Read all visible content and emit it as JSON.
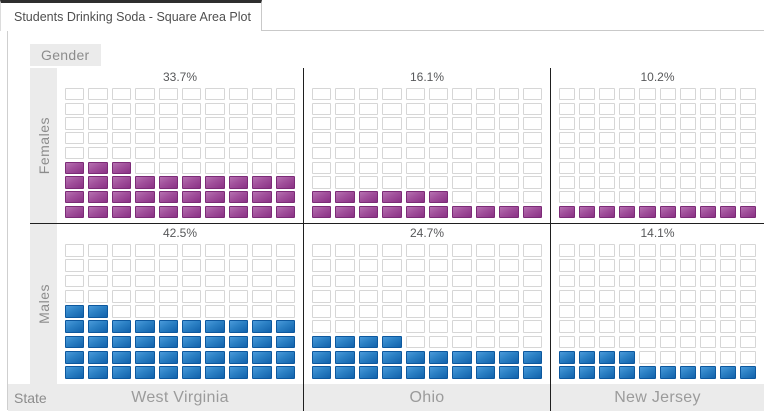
{
  "tab": {
    "title": "Students Drinking Soda - Square Area Plot"
  },
  "facets": {
    "row_header": "Gender",
    "col_header": "State",
    "row_labels": [
      "Females",
      "Males"
    ],
    "col_labels": [
      "West Virginia",
      "Ohio",
      "New Jersey"
    ]
  },
  "panels": [
    {
      "row": "Females",
      "col": "West Virginia",
      "percent_label": "33.7%",
      "filled_squares": 33
    },
    {
      "row": "Females",
      "col": "Ohio",
      "percent_label": "16.1%",
      "filled_squares": 16
    },
    {
      "row": "Females",
      "col": "New Jersey",
      "percent_label": "10.2%",
      "filled_squares": 10
    },
    {
      "row": "Males",
      "col": "West Virginia",
      "percent_label": "42.5%",
      "filled_squares": 42
    },
    {
      "row": "Males",
      "col": "Ohio",
      "percent_label": "24.7%",
      "filled_squares": 24
    },
    {
      "row": "Males",
      "col": "New Jersey",
      "percent_label": "14.1%",
      "filled_squares": 14
    }
  ],
  "chart_data": {
    "type": "waffle",
    "title": "Students Drinking Soda - Square Area Plot",
    "row_facet": "Gender",
    "col_facet": "State",
    "rows": [
      "Females",
      "Males"
    ],
    "columns": [
      "West Virginia",
      "Ohio",
      "New Jersey"
    ],
    "series": [
      {
        "name": "Females",
        "values_percent": [
          33.7,
          16.1,
          10.2
        ]
      },
      {
        "name": "Males",
        "values_percent": [
          42.5,
          24.7,
          14.1
        ]
      }
    ],
    "value_labels": [
      "33.7%",
      "16.1%",
      "10.2%",
      "42.5%",
      "24.7%",
      "14.1%"
    ],
    "grid": {
      "columns": 10,
      "rows": 9,
      "square_unit_percent": 1,
      "fill_origin": "bottom-left"
    },
    "filled_squares": {
      "Females": [
        33,
        16,
        10
      ],
      "Males": [
        42,
        24,
        14
      ]
    },
    "colors": {
      "females_fill": "#9c4496",
      "females_border": "#7c2b77",
      "males_fill": "#1b6fb5",
      "males_border": "#0d589e",
      "empty_fill": "#ffffff",
      "empty_border": "#d6d6d6",
      "divider": "#1f1f1f",
      "band_background": "#ebebeb",
      "label_gray": "#8c8c8c"
    },
    "legend": "none"
  }
}
